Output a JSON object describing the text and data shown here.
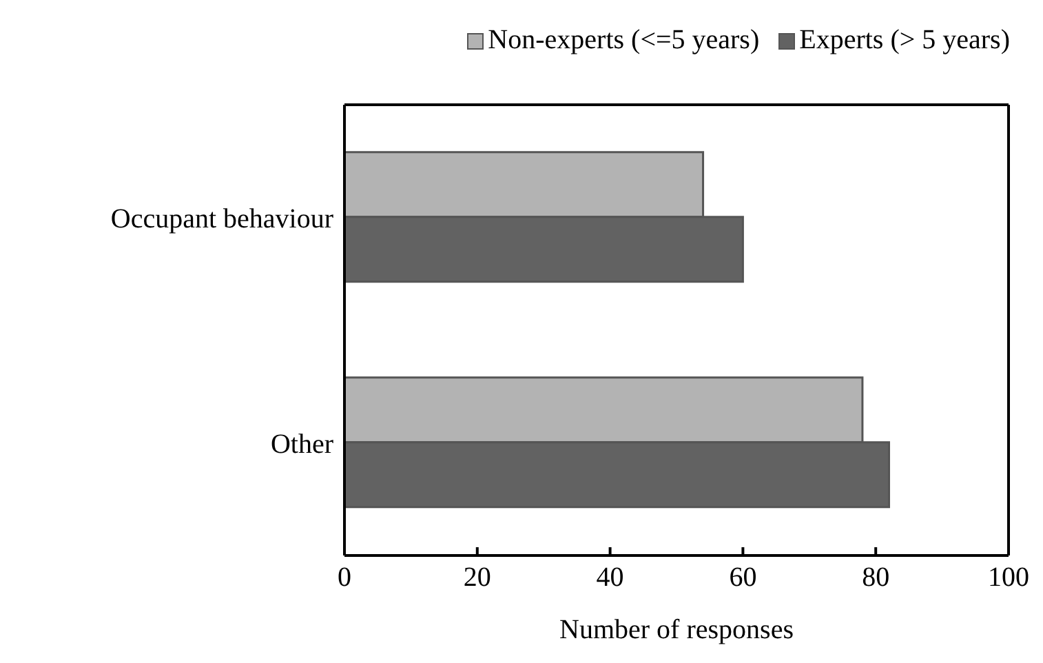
{
  "chart_data": {
    "type": "bar",
    "orientation": "horizontal",
    "xlabel": "Number of responses",
    "categories": [
      "Occupant behaviour",
      "Other"
    ],
    "series": [
      {
        "name": "Non-experts (<=5 years)",
        "color": "#b3b3b3",
        "values": [
          54,
          78
        ]
      },
      {
        "name": "Experts (> 5 years)",
        "color": "#626262",
        "values": [
          60,
          82
        ]
      }
    ],
    "xlim": [
      0,
      100
    ],
    "xticks": [
      0,
      20,
      40,
      60,
      80,
      100
    ],
    "legend": "top",
    "grid": false
  }
}
